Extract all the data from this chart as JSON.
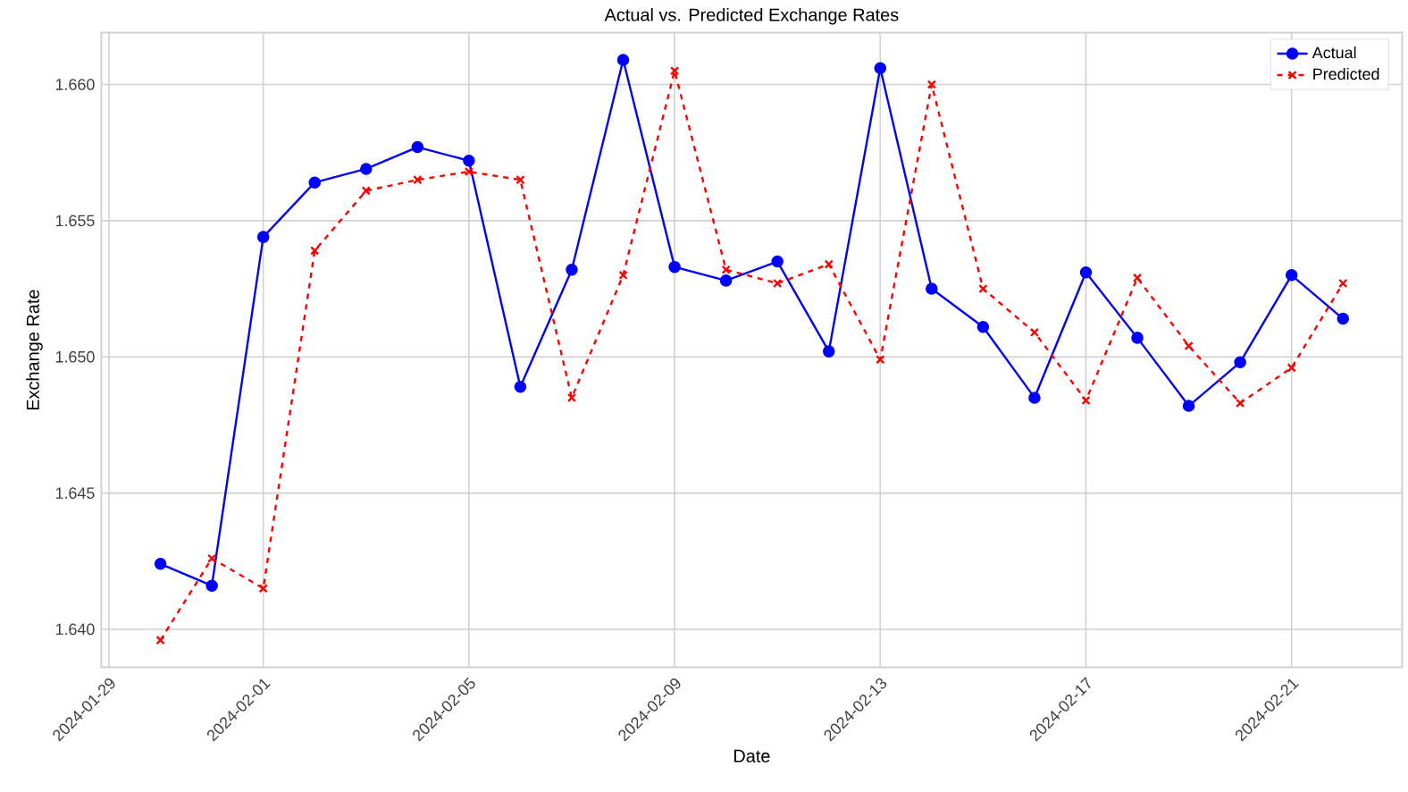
{
  "chart_data": {
    "type": "line",
    "title": "Actual vs. Predicted Exchange Rates",
    "xlabel": "Date",
    "ylabel": "Exchange Rate",
    "x": [
      "2024-01-30",
      "2024-01-31",
      "2024-02-01",
      "2024-02-02",
      "2024-02-03",
      "2024-02-04",
      "2024-02-05",
      "2024-02-06",
      "2024-02-07",
      "2024-02-08",
      "2024-02-09",
      "2024-02-10",
      "2024-02-11",
      "2024-02-12",
      "2024-02-13",
      "2024-02-14",
      "2024-02-15",
      "2024-02-16",
      "2024-02-17",
      "2024-02-18",
      "2024-02-19",
      "2024-02-20",
      "2024-02-21",
      "2024-02-22"
    ],
    "series": [
      {
        "name": "Actual",
        "color": "#0000ff",
        "marker": "circle",
        "line_style": "solid",
        "values": [
          1.6424,
          1.6416,
          1.6544,
          1.6564,
          1.6569,
          1.6577,
          1.6572,
          1.6489,
          1.6532,
          1.6609,
          1.6533,
          1.6528,
          1.6535,
          1.6502,
          1.6606,
          1.6525,
          1.6511,
          1.6485,
          1.6531,
          1.6507,
          1.6482,
          1.6498,
          1.653,
          1.6514
        ]
      },
      {
        "name": "Predicted",
        "color": "#ff0000",
        "marker": "cross",
        "line_style": "dashed",
        "values": [
          1.6396,
          1.6426,
          1.6415,
          1.6539,
          1.6561,
          1.6565,
          1.6568,
          1.6565,
          1.6485,
          1.653,
          1.6605,
          1.6532,
          1.6527,
          1.6534,
          1.6499,
          1.66,
          1.6525,
          1.6509,
          1.6484,
          1.6529,
          1.6504,
          1.6483,
          1.6496,
          1.6527
        ]
      }
    ],
    "xlim": [
      "2024-01-28T20:24",
      "2024-02-23T03:36"
    ],
    "xticks": [
      "2024-01-29",
      "2024-02-01",
      "2024-02-05",
      "2024-02-09",
      "2024-02-13",
      "2024-02-17",
      "2024-02-21"
    ],
    "ylim": [
      1.6386,
      1.6619
    ],
    "yticks": [
      {
        "value": 1.64,
        "label": "1.640"
      },
      1.645,
      {
        "value": 1.65,
        "label": "1.650"
      },
      1.655,
      {
        "value": 1.66,
        "label": "1.660"
      }
    ],
    "grid": true,
    "legend": "top right"
  }
}
